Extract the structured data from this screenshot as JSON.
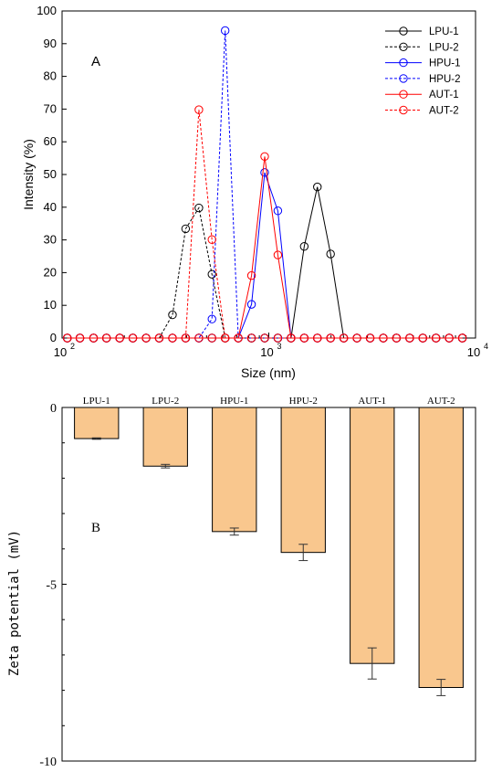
{
  "chart_data": [
    {
      "type": "line",
      "panel_label": "A",
      "xlabel": "Size (nm)",
      "ylabel": "Intensity (%)",
      "xscale": "log",
      "xlim": [
        100,
        10000
      ],
      "ylim": [
        0,
        100
      ],
      "xticks": [
        {
          "value": 100,
          "base": "10",
          "exp": "2"
        },
        {
          "value": 1000,
          "base": "10",
          "exp": "3"
        },
        {
          "value": 10000,
          "base": "10",
          "exp": "4"
        }
      ],
      "yticks": [
        0,
        10,
        20,
        30,
        40,
        50,
        60,
        70,
        80,
        90,
        100
      ],
      "ytick_labels": [
        "0",
        "10",
        "20",
        "30",
        "40",
        "50",
        "60",
        "70",
        "80",
        "90",
        "100"
      ],
      "legend_position": "top-right",
      "x": [
        106,
        122,
        142,
        164,
        190,
        220,
        255,
        295,
        342,
        396,
        459,
        531,
        615,
        712,
        825,
        955,
        1106,
        1281,
        1484,
        1718,
        1990,
        2305,
        2669,
        3091,
        3580,
        4145,
        4801,
        5560,
        6439,
        7456,
        8635
      ],
      "series": [
        {
          "name": "LPU-1",
          "color": "#000000",
          "dash": "solid",
          "values": [
            0,
            0,
            0,
            0,
            0,
            0,
            0,
            0,
            0,
            0,
            0,
            0,
            0,
            0,
            0,
            0,
            0,
            0,
            28.0,
            46.2,
            25.7,
            0,
            0,
            0,
            0,
            0,
            0,
            0,
            0,
            0,
            0
          ]
        },
        {
          "name": "LPU-2",
          "color": "#000000",
          "dash": "dashed",
          "values": [
            0,
            0,
            0,
            0,
            0,
            0,
            0,
            0,
            7.1,
            33.4,
            39.8,
            19.5,
            0,
            0,
            0,
            0,
            0,
            0,
            0,
            0,
            0,
            0,
            0,
            0,
            0,
            0,
            0,
            0,
            0,
            0,
            0
          ]
        },
        {
          "name": "HPU-1",
          "color": "#0000ff",
          "dash": "solid",
          "values": [
            0,
            0,
            0,
            0,
            0,
            0,
            0,
            0,
            0,
            0,
            0,
            0,
            0,
            0,
            10.3,
            50.6,
            38.9,
            0,
            0,
            0,
            0,
            0,
            0,
            0,
            0,
            0,
            0,
            0,
            0,
            0,
            0
          ]
        },
        {
          "name": "HPU-2",
          "color": "#0000ff",
          "dash": "dashed",
          "values": [
            0,
            0,
            0,
            0,
            0,
            0,
            0,
            0,
            0,
            0,
            0,
            5.8,
            94.0,
            0,
            0,
            0,
            0,
            0,
            0,
            0,
            0,
            0,
            0,
            0,
            0,
            0,
            0,
            0,
            0,
            0,
            0
          ]
        },
        {
          "name": "AUT-1",
          "color": "#ff0000",
          "dash": "solid",
          "values": [
            0,
            0,
            0,
            0,
            0,
            0,
            0,
            0,
            0,
            0,
            0,
            0,
            0,
            0,
            19.1,
            55.5,
            25.4,
            0,
            0,
            0,
            0,
            0,
            0,
            0,
            0,
            0,
            0,
            0,
            0,
            0,
            0
          ]
        },
        {
          "name": "AUT-2",
          "color": "#ff0000",
          "dash": "dashed",
          "values": [
            0,
            0,
            0,
            0,
            0,
            0,
            0,
            0,
            0,
            0,
            69.8,
            30.1,
            0,
            0,
            0,
            0,
            0,
            0,
            0,
            0,
            0,
            0,
            0,
            0,
            0,
            0,
            0,
            0,
            0,
            0,
            0
          ]
        }
      ]
    },
    {
      "type": "bar",
      "panel_label": "B",
      "ylabel": "Zeta potential (mV)",
      "ylim": [
        -10,
        0
      ],
      "yticks": [
        0,
        -5,
        -10
      ],
      "ytick_labels": [
        "0",
        "-5",
        "-10"
      ],
      "bar_color": "#f9c78e",
      "categories": [
        "LPU-1",
        "LPU-2",
        "HPU-1",
        "HPU-2",
        "AUT-1",
        "AUT-2"
      ],
      "values": [
        -0.88,
        -1.66,
        -3.51,
        -4.1,
        -7.24,
        -7.92
      ],
      "errors": [
        0.02,
        0.05,
        0.1,
        0.23,
        0.44,
        0.23
      ]
    }
  ]
}
